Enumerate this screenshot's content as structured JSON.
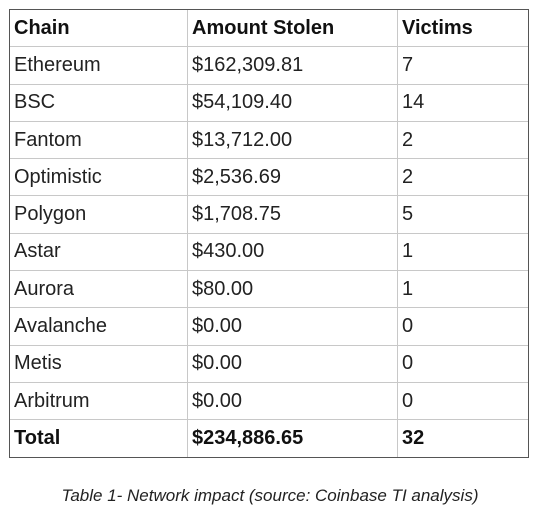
{
  "table": {
    "headers": [
      "Chain",
      "Amount Stolen",
      "Victims"
    ],
    "rows": [
      [
        "Ethereum",
        "$162,309.81",
        "7"
      ],
      [
        "BSC",
        "$54,109.40",
        "14"
      ],
      [
        "Fantom",
        "$13,712.00",
        "2"
      ],
      [
        "Optimistic",
        "$2,536.69",
        "2"
      ],
      [
        "Polygon",
        "$1,708.75",
        "5"
      ],
      [
        "Astar",
        "$430.00",
        "1"
      ],
      [
        "Aurora",
        "$80.00",
        "1"
      ],
      [
        "Avalanche",
        "$0.00",
        "0"
      ],
      [
        "Metis",
        "$0.00",
        "0"
      ],
      [
        "Arbitrum",
        "$0.00",
        "0"
      ]
    ],
    "total": [
      "Total",
      "$234,886.65",
      "32"
    ]
  },
  "caption": "Table 1-  Network impact (source: Coinbase TI analysis)"
}
